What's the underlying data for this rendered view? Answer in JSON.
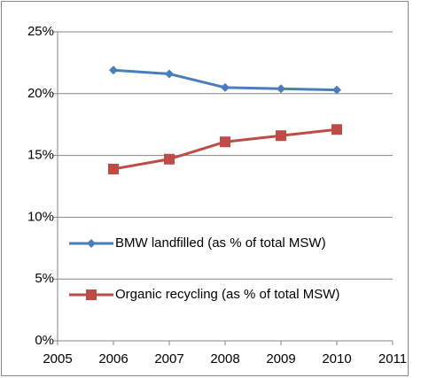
{
  "chart_data": {
    "type": "line",
    "x": [
      2006,
      2007,
      2008,
      2009,
      2010
    ],
    "series": [
      {
        "name": "BMW landfilled (as % of total MSW)",
        "color": "#4a7ebb",
        "marker": "diamond",
        "values": [
          21.9,
          21.6,
          20.5,
          20.4,
          20.3
        ]
      },
      {
        "name": "Organic recycling (as % of total MSW)",
        "color": "#be4b48",
        "marker": "square",
        "values": [
          13.9,
          14.7,
          16.1,
          16.6,
          17.1
        ]
      }
    ],
    "xlim": [
      2005,
      2011
    ],
    "xticks": [
      2005,
      2006,
      2007,
      2008,
      2009,
      2010,
      2011
    ],
    "ylim": [
      0,
      25
    ],
    "yticks": [
      {
        "value": 0,
        "label": "0%"
      },
      {
        "value": 5,
        "label": "5%"
      },
      {
        "value": 10,
        "label": "10%"
      },
      {
        "value": 15,
        "label": "15%"
      },
      {
        "value": 20,
        "label": "20%"
      },
      {
        "value": 25,
        "label": "25%"
      }
    ],
    "grid": true,
    "legend": "left"
  }
}
